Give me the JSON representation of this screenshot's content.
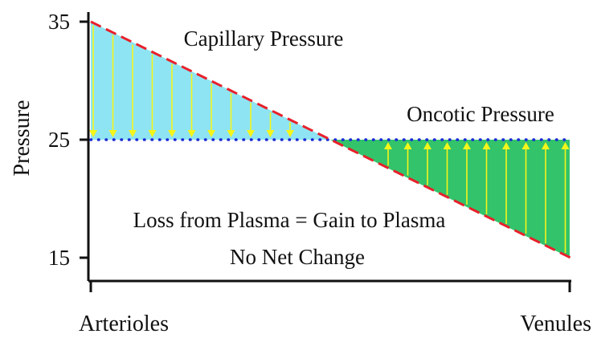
{
  "chart_data": {
    "type": "area",
    "title": "",
    "xlabel": "",
    "ylabel": "Pressure",
    "ylim": [
      15,
      35
    ],
    "yticks": [
      15,
      25,
      35
    ],
    "x_categories": [
      "Arterioles",
      "Venules"
    ],
    "series": [
      {
        "name": "Capillary Pressure",
        "style": "dashed",
        "color": "#e8202a",
        "x": [
          "Arterioles",
          "Venules"
        ],
        "y": [
          35,
          15
        ]
      },
      {
        "name": "Oncotic Pressure",
        "style": "dotted",
        "color": "#1a2ad6",
        "x": [
          "Arterioles",
          "Venules"
        ],
        "y": [
          25,
          25
        ]
      }
    ],
    "regions": [
      {
        "label": "loss",
        "fill": "#8ee4f2",
        "arrow_direction": "down"
      },
      {
        "label": "gain",
        "fill": "#33c36a",
        "arrow_direction": "up"
      }
    ],
    "arrow_color": "#f5f51a",
    "annotations": [
      "Loss from Plasma = Gain to Plasma",
      "No Net Change"
    ]
  }
}
